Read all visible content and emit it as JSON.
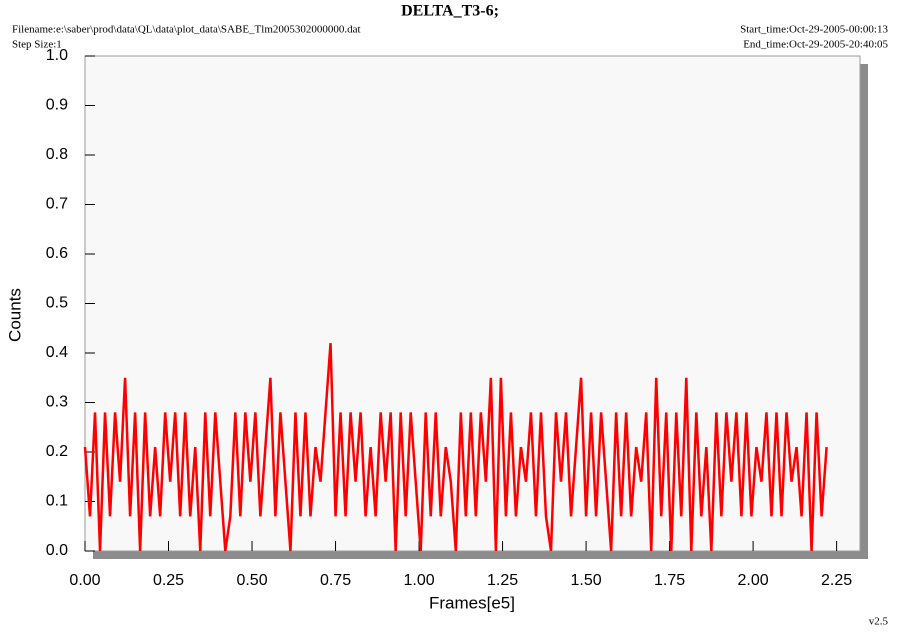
{
  "chart_data": {
    "type": "line",
    "title": "DELTA_T3-6;",
    "filename": "Filename:e:\\saber\\prod\\data\\QL\\data\\plot_data\\SABE_Tlm2005302000000.dat",
    "step_size": "Step Size:1",
    "start_time": "Start_time:Oct-29-2005-00:00:13",
    "end_time": "End_time:Oct-29-2005-20:40:05",
    "version": "v2.5",
    "x_label": "Frames[e5]",
    "y_label": "Counts",
    "color": "#ff0000",
    "xlim": [
      0,
      2.32
    ],
    "ylim": [
      0,
      1.0
    ],
    "xticks": [
      {
        "value": 0,
        "label": "0.00"
      },
      0.25,
      {
        "value": 0.5,
        "label": "0.50"
      },
      0.75,
      {
        "value": 1,
        "label": "1.00"
      },
      1.25,
      {
        "value": 1.5,
        "label": "1.50"
      },
      1.75,
      {
        "value": 2,
        "label": "2.00"
      },
      2.25
    ],
    "yticks": [
      {
        "value": 0,
        "label": "0.0"
      },
      0.1,
      0.2,
      0.3,
      0.4,
      0.5,
      0.6,
      0.7,
      0.8,
      0.9,
      {
        "value": 1,
        "label": "1.0"
      }
    ],
    "x": [
      0,
      0.015,
      0.03,
      0.045,
      0.06,
      0.075,
      0.09,
      0.105,
      0.12,
      0.135,
      0.15,
      0.165,
      0.18,
      0.195,
      0.21,
      0.225,
      0.24,
      0.255,
      0.27,
      0.285,
      0.3,
      0.315,
      0.33,
      0.345,
      0.36,
      0.375,
      0.39,
      0.405,
      0.42,
      0.435,
      0.45,
      0.465,
      0.48,
      0.495,
      0.51,
      0.525,
      0.54,
      0.555,
      0.57,
      0.585,
      0.6,
      0.615,
      0.63,
      0.645,
      0.66,
      0.675,
      0.69,
      0.705,
      0.72,
      0.735,
      0.75,
      0.765,
      0.78,
      0.795,
      0.81,
      0.825,
      0.84,
      0.855,
      0.87,
      0.885,
      0.9,
      0.915,
      0.93,
      0.945,
      0.96,
      0.975,
      0.99,
      1.005,
      1.02,
      1.035,
      1.05,
      1.065,
      1.08,
      1.095,
      1.11,
      1.125,
      1.14,
      1.155,
      1.17,
      1.185,
      1.2,
      1.215,
      1.23,
      1.245,
      1.26,
      1.275,
      1.29,
      1.305,
      1.32,
      1.335,
      1.35,
      1.365,
      1.38,
      1.395,
      1.41,
      1.425,
      1.44,
      1.455,
      1.47,
      1.485,
      1.5,
      1.515,
      1.53,
      1.545,
      1.56,
      1.575,
      1.59,
      1.605,
      1.62,
      1.635,
      1.65,
      1.665,
      1.68,
      1.695,
      1.71,
      1.725,
      1.74,
      1.755,
      1.77,
      1.785,
      1.8,
      1.815,
      1.83,
      1.845,
      1.86,
      1.875,
      1.89,
      1.905,
      1.92,
      1.935,
      1.95,
      1.965,
      1.98,
      1.995,
      2.01,
      2.025,
      2.04,
      2.055,
      2.07,
      2.085,
      2.1,
      2.115,
      2.13,
      2.145,
      2.16,
      2.175,
      2.19,
      2.205,
      2.22
    ],
    "values": [
      0.21,
      0.07,
      0.28,
      0,
      0.28,
      0.07,
      0.28,
      0.14,
      0.35,
      0.07,
      0.28,
      0,
      0.28,
      0.07,
      0.21,
      0.07,
      0.28,
      0.14,
      0.28,
      0.07,
      0.28,
      0.07,
      0.21,
      0,
      0.28,
      0.07,
      0.28,
      0.14,
      0,
      0.07,
      0.28,
      0.07,
      0.28,
      0.14,
      0.28,
      0.07,
      0.21,
      0.35,
      0.07,
      0.28,
      0.14,
      0,
      0.28,
      0.07,
      0.28,
      0.07,
      0.21,
      0.14,
      0.28,
      0.42,
      0.07,
      0.28,
      0.07,
      0.28,
      0.14,
      0.28,
      0.07,
      0.21,
      0.07,
      0.28,
      0.14,
      0.28,
      0,
      0.28,
      0.07,
      0.28,
      0.14,
      0,
      0.28,
      0.07,
      0.28,
      0.07,
      0.21,
      0.14,
      0,
      0.28,
      0.07,
      0.28,
      0.07,
      0.28,
      0.14,
      0.35,
      0,
      0.35,
      0.07,
      0.28,
      0.07,
      0.21,
      0.14,
      0.28,
      0.07,
      0.28,
      0.07,
      0,
      0.28,
      0.14,
      0.28,
      0.07,
      0.21,
      0.35,
      0.07,
      0.28,
      0.07,
      0.28,
      0.14,
      0,
      0.28,
      0.07,
      0.28,
      0.07,
      0.21,
      0.14,
      0.28,
      0,
      0.35,
      0.07,
      0.28,
      0,
      0.28,
      0.07,
      0.35,
      0,
      0.28,
      0.07,
      0.21,
      0,
      0.28,
      0.07,
      0.28,
      0.14,
      0.28,
      0.07,
      0.28,
      0.07,
      0.21,
      0.14,
      0.28,
      0.07,
      0.28,
      0.07,
      0.28,
      0.14,
      0.21,
      0.07,
      0.28,
      0,
      0.28,
      0.07,
      0.21
    ]
  }
}
